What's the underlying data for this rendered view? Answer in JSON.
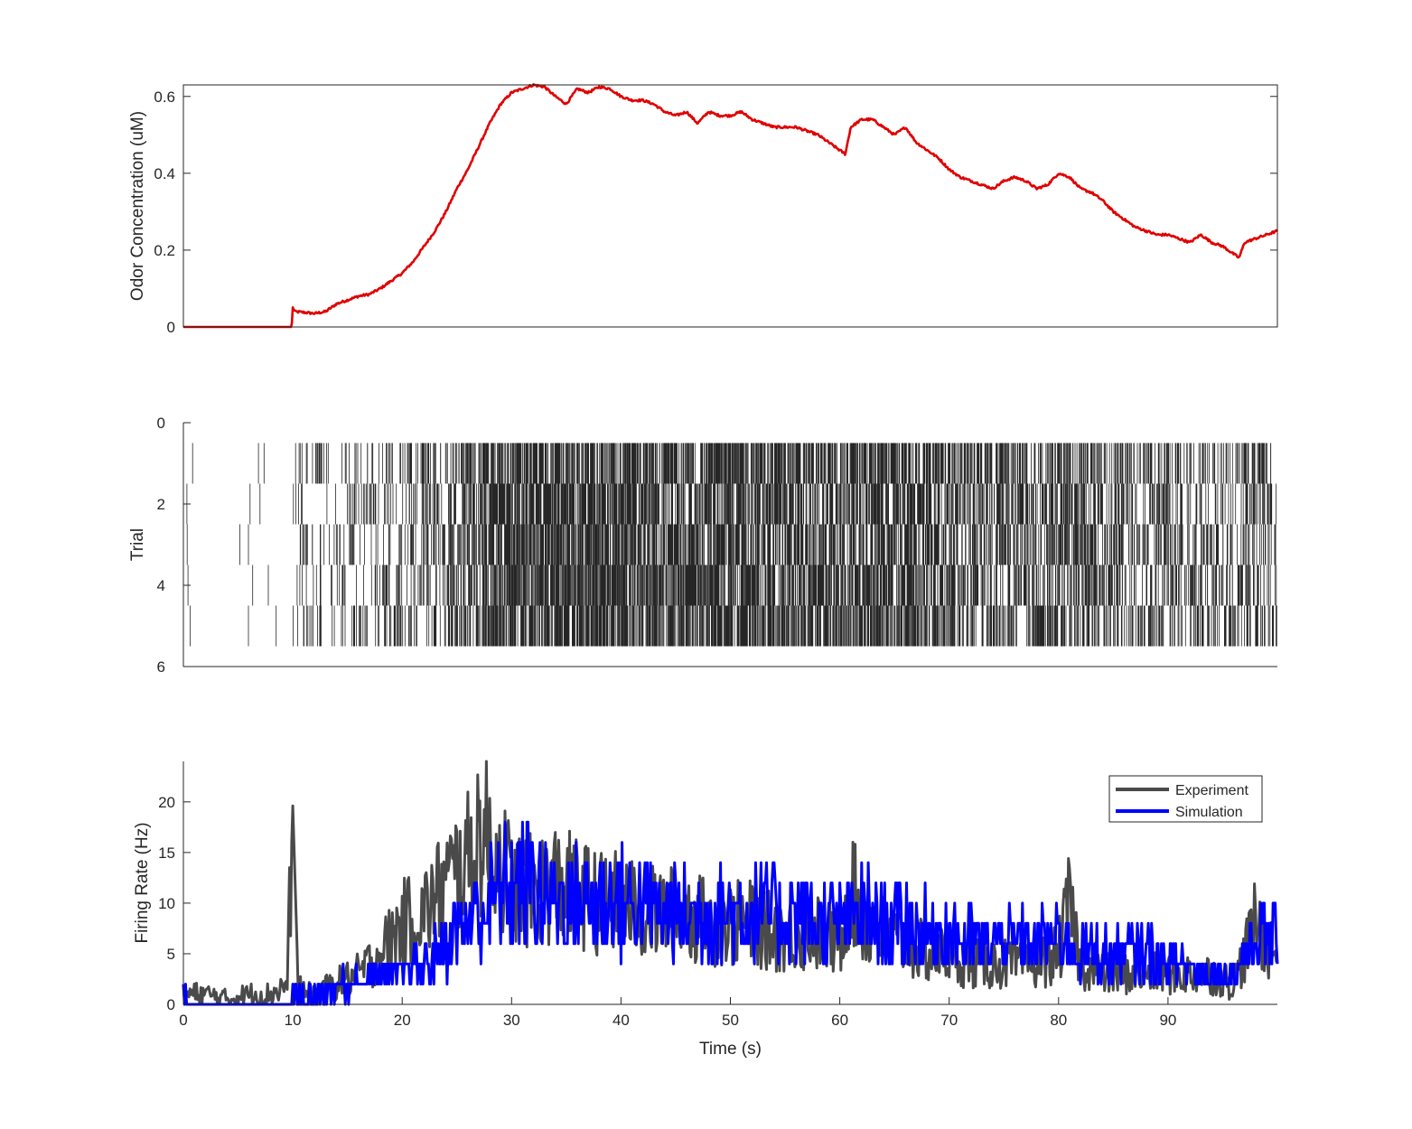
{
  "colors": {
    "odor": "#e00000",
    "experiment": "#4a4a4a",
    "simulation": "#0000ff",
    "raster": "#000000",
    "axes": "#262626"
  },
  "chart_data": [
    {
      "type": "line",
      "ylabel": "Odor Concentration (uM)",
      "xlabel": "",
      "xlim": [
        0,
        100
      ],
      "ylim": [
        0,
        0.63
      ],
      "yticks": [
        "0",
        "0.2",
        "0.4",
        "0.6"
      ],
      "grid": false,
      "series": [
        {
          "color": "#e00000",
          "x": [
            0,
            9.9,
            10,
            10.2,
            11,
            12,
            13,
            14,
            15,
            16,
            17,
            18,
            19,
            20,
            21,
            22,
            23,
            24,
            25,
            26,
            27,
            28,
            29,
            30,
            31,
            32,
            33,
            34,
            35,
            36,
            37,
            38,
            39,
            40,
            41,
            42,
            43,
            44,
            45,
            46,
            47,
            48,
            49,
            50,
            51,
            52,
            53,
            54,
            55,
            56,
            57,
            58,
            59,
            60,
            60.5,
            61,
            62,
            63,
            64,
            65,
            66,
            67,
            68,
            69,
            70,
            71,
            72,
            73,
            74,
            75,
            76,
            77,
            78,
            79,
            80,
            81,
            82,
            83,
            84,
            85,
            86,
            87,
            88,
            89,
            90,
            91,
            92,
            93,
            94,
            95,
            96,
            96.5,
            97,
            98,
            99,
            100
          ],
          "y": [
            0,
            0,
            0.05,
            0.04,
            0.038,
            0.035,
            0.04,
            0.06,
            0.07,
            0.08,
            0.085,
            0.1,
            0.12,
            0.14,
            0.17,
            0.21,
            0.25,
            0.3,
            0.36,
            0.41,
            0.47,
            0.53,
            0.58,
            0.61,
            0.62,
            0.63,
            0.625,
            0.6,
            0.58,
            0.62,
            0.61,
            0.625,
            0.62,
            0.6,
            0.59,
            0.59,
            0.58,
            0.56,
            0.55,
            0.56,
            0.53,
            0.56,
            0.55,
            0.55,
            0.56,
            0.54,
            0.53,
            0.52,
            0.52,
            0.52,
            0.51,
            0.5,
            0.48,
            0.46,
            0.45,
            0.52,
            0.54,
            0.54,
            0.52,
            0.5,
            0.52,
            0.48,
            0.46,
            0.44,
            0.41,
            0.39,
            0.38,
            0.37,
            0.36,
            0.38,
            0.39,
            0.38,
            0.36,
            0.37,
            0.4,
            0.39,
            0.36,
            0.35,
            0.33,
            0.3,
            0.28,
            0.26,
            0.25,
            0.24,
            0.24,
            0.23,
            0.22,
            0.24,
            0.22,
            0.21,
            0.19,
            0.18,
            0.22,
            0.23,
            0.24,
            0.25
          ]
        }
      ]
    },
    {
      "type": "scatter",
      "subtype": "raster",
      "ylabel": "Trial",
      "xlabel": "",
      "xlim": [
        0,
        100
      ],
      "ylim": [
        0,
        6
      ],
      "yticks": [
        "0",
        "2",
        "4",
        "6"
      ],
      "y_reversed": true,
      "trials": 5,
      "grid": false
    },
    {
      "type": "line",
      "ylabel": "Firing Rate (Hz)",
      "xlabel": "Time (s)",
      "xlim": [
        0,
        100
      ],
      "ylim": [
        0,
        24
      ],
      "xticks": [
        "0",
        "10",
        "20",
        "30",
        "40",
        "50",
        "60",
        "70",
        "80",
        "90"
      ],
      "yticks": [
        "0",
        "5",
        "10",
        "15",
        "20"
      ],
      "legend_position": "top-right",
      "grid": false,
      "series": [
        {
          "name": "Experiment",
          "color": "#4a4a4a",
          "x": [
            0,
            2,
            4,
            6,
            8,
            9.5,
            10,
            10.5,
            11,
            12,
            14,
            16,
            18,
            20,
            22,
            24,
            26,
            27,
            28,
            29,
            30,
            32,
            34,
            36,
            38,
            40,
            42,
            44,
            46,
            48,
            50,
            52,
            54,
            56,
            58,
            60,
            61,
            62,
            64,
            66,
            68,
            70,
            72,
            74,
            76,
            78,
            80,
            81,
            82,
            84,
            86,
            88,
            90,
            92,
            94,
            96,
            97,
            98,
            99,
            100
          ],
          "y": [
            1,
            1,
            0.5,
            1,
            1,
            2,
            19.6,
            2,
            1,
            1,
            2,
            3,
            5,
            8,
            9,
            12,
            14,
            17,
            16,
            14,
            12,
            11,
            12,
            11,
            10,
            10,
            9,
            9,
            9,
            8,
            8,
            8,
            7,
            7,
            7,
            6,
            12,
            8,
            7,
            6,
            5,
            5,
            4,
            4,
            4,
            4,
            5,
            10,
            4,
            3,
            3,
            3,
            3,
            3,
            3,
            2,
            5,
            8,
            6,
            5
          ]
        },
        {
          "name": "Simulation",
          "color": "#0000ff",
          "x": [
            0,
            2,
            4,
            6,
            8,
            9.5,
            10,
            10.5,
            11,
            12,
            14,
            16,
            18,
            20,
            22,
            24,
            26,
            28,
            30,
            32,
            34,
            36,
            38,
            40,
            42,
            44,
            46,
            48,
            50,
            52,
            54,
            56,
            58,
            60,
            62,
            64,
            66,
            68,
            70,
            72,
            74,
            76,
            78,
            80,
            82,
            84,
            86,
            88,
            90,
            92,
            94,
            96,
            97,
            98,
            99,
            100
          ],
          "y": [
            1,
            0,
            0,
            0,
            0,
            0,
            1,
            1,
            1,
            1,
            2,
            2,
            3,
            3,
            4,
            6,
            8,
            10,
            12,
            12,
            10,
            10,
            10,
            10,
            10,
            9,
            9,
            9,
            9,
            9,
            9,
            9,
            8,
            8,
            9,
            8,
            8,
            7,
            7,
            6,
            6,
            6,
            6,
            7,
            5,
            5,
            5,
            5,
            4,
            4,
            3,
            3,
            5,
            6,
            7,
            6
          ]
        }
      ]
    }
  ]
}
